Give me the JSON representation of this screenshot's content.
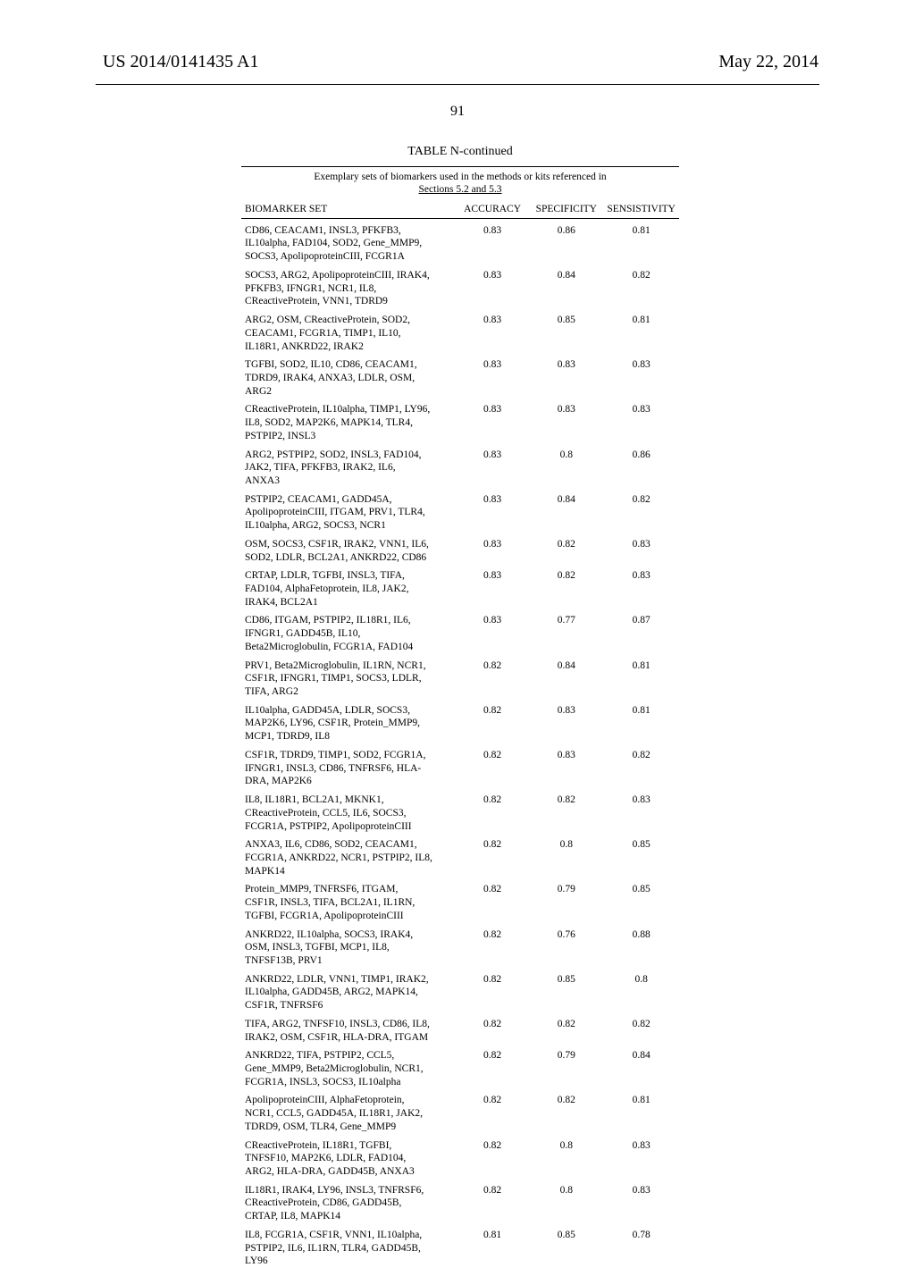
{
  "header": {
    "publication_number": "US 2014/0141435 A1",
    "publication_date": "May 22, 2014",
    "page_number": "91"
  },
  "table": {
    "title": "TABLE N-continued",
    "caption_line1": "Exemplary sets of biomarkers used in the methods or kits referenced in",
    "caption_line2": "Sections 5.2 and 5.3",
    "columns": [
      "BIOMARKER SET",
      "ACCURACY",
      "SPECIFICITY",
      "SENSISTIVITY"
    ],
    "rows": [
      {
        "set": [
          "CD86, CEACAM1, INSL3, PFKFB3,",
          "IL10alpha, FAD104, SOD2, Gene_MMP9,",
          "SOCS3, ApolipoproteinCIII, FCGR1A"
        ],
        "acc": "0.83",
        "spec": "0.86",
        "sens": "0.81"
      },
      {
        "set": [
          "SOCS3, ARG2, ApolipoproteinCIII, IRAK4,",
          "PFKFB3, IFNGR1, NCR1, IL8,",
          "CReactiveProtein, VNN1, TDRD9"
        ],
        "acc": "0.83",
        "spec": "0.84",
        "sens": "0.82"
      },
      {
        "set": [
          "ARG2, OSM, CReactiveProtein, SOD2,",
          "CEACAM1, FCGR1A, TIMP1, IL10,",
          "IL18R1, ANKRD22, IRAK2"
        ],
        "acc": "0.83",
        "spec": "0.85",
        "sens": "0.81"
      },
      {
        "set": [
          "TGFBI, SOD2, IL10, CD86, CEACAM1,",
          "TDRD9, IRAK4, ANXA3, LDLR, OSM,",
          "ARG2"
        ],
        "acc": "0.83",
        "spec": "0.83",
        "sens": "0.83"
      },
      {
        "set": [
          "CReactiveProtein, IL10alpha, TIMP1, LY96,",
          "IL8, SOD2, MAP2K6, MAPK14, TLR4,",
          "PSTPIP2, INSL3"
        ],
        "acc": "0.83",
        "spec": "0.83",
        "sens": "0.83"
      },
      {
        "set": [
          "ARG2, PSTPIP2, SOD2, INSL3, FAD104,",
          "JAK2, TIFA, PFKFB3, IRAK2, IL6,",
          "ANXA3"
        ],
        "acc": "0.83",
        "spec": "0.8",
        "sens": "0.86"
      },
      {
        "set": [
          "PSTPIP2, CEACAM1, GADD45A,",
          "ApolipoproteinCIII, ITGAM, PRV1, TLR4,",
          "IL10alpha, ARG2, SOCS3, NCR1"
        ],
        "acc": "0.83",
        "spec": "0.84",
        "sens": "0.82"
      },
      {
        "set": [
          "OSM, SOCS3, CSF1R, IRAK2, VNN1, IL6,",
          "SOD2, LDLR, BCL2A1, ANKRD22, CD86"
        ],
        "acc": "0.83",
        "spec": "0.82",
        "sens": "0.83"
      },
      {
        "set": [
          "CRTAP, LDLR, TGFBI, INSL3, TIFA,",
          "FAD104, AlphaFetoprotein, IL8, JAK2,",
          "IRAK4, BCL2A1"
        ],
        "acc": "0.83",
        "spec": "0.82",
        "sens": "0.83"
      },
      {
        "set": [
          "CD86, ITGAM, PSTPIP2, IL18R1, IL6,",
          "IFNGR1, GADD45B, IL10,",
          "Beta2Microglobulin, FCGR1A, FAD104"
        ],
        "acc": "0.83",
        "spec": "0.77",
        "sens": "0.87"
      },
      {
        "set": [
          "PRV1, Beta2Microglobulin, IL1RN, NCR1,",
          "CSF1R, IFNGR1, TIMP1, SOCS3, LDLR,",
          "TIFA, ARG2"
        ],
        "acc": "0.82",
        "spec": "0.84",
        "sens": "0.81"
      },
      {
        "set": [
          "IL10alpha, GADD45A, LDLR, SOCS3,",
          "MAP2K6, LY96, CSF1R, Protein_MMP9,",
          "MCP1, TDRD9, IL8"
        ],
        "acc": "0.82",
        "spec": "0.83",
        "sens": "0.81"
      },
      {
        "set": [
          "CSF1R, TDRD9, TIMP1, SOD2, FCGR1A,",
          "IFNGR1, INSL3, CD86, TNFRSF6, HLA-",
          "DRA, MAP2K6"
        ],
        "acc": "0.82",
        "spec": "0.83",
        "sens": "0.82"
      },
      {
        "set": [
          "IL8, IL18R1, BCL2A1, MKNK1,",
          "CReactiveProtein, CCL5, IL6, SOCS3,",
          "FCGR1A, PSTPIP2, ApolipoproteinCIII"
        ],
        "acc": "0.82",
        "spec": "0.82",
        "sens": "0.83"
      },
      {
        "set": [
          "ANXA3, IL6, CD86, SOD2, CEACAM1,",
          "FCGR1A, ANKRD22, NCR1, PSTPIP2, IL8,",
          "MAPK14"
        ],
        "acc": "0.82",
        "spec": "0.8",
        "sens": "0.85"
      },
      {
        "set": [
          "Protein_MMP9, TNFRSF6, ITGAM,",
          "CSF1R, INSL3, TIFA, BCL2A1, IL1RN,",
          "TGFBI, FCGR1A, ApolipoproteinCIII"
        ],
        "acc": "0.82",
        "spec": "0.79",
        "sens": "0.85"
      },
      {
        "set": [
          "ANKRD22, IL10alpha, SOCS3, IRAK4,",
          "OSM, INSL3, TGFBI, MCP1, IL8,",
          "TNFSF13B, PRV1"
        ],
        "acc": "0.82",
        "spec": "0.76",
        "sens": "0.88"
      },
      {
        "set": [
          "ANKRD22, LDLR, VNN1, TIMP1, IRAK2,",
          "IL10alpha, GADD45B, ARG2, MAPK14,",
          "CSF1R, TNFRSF6"
        ],
        "acc": "0.82",
        "spec": "0.85",
        "sens": "0.8"
      },
      {
        "set": [
          "TIFA, ARG2, TNFSF10, INSL3, CD86, IL8,",
          "IRAK2, OSM, CSF1R, HLA-DRA, ITGAM"
        ],
        "acc": "0.82",
        "spec": "0.82",
        "sens": "0.82"
      },
      {
        "set": [
          "ANKRD22, TIFA, PSTPIP2, CCL5,",
          "Gene_MMP9, Beta2Microglobulin, NCR1,",
          "FCGR1A, INSL3, SOCS3, IL10alpha"
        ],
        "acc": "0.82",
        "spec": "0.79",
        "sens": "0.84"
      },
      {
        "set": [
          "ApolipoproteinCIII, AlphaFetoprotein,",
          "NCR1, CCL5, GADD45A, IL18R1, JAK2,",
          "TDRD9, OSM, TLR4, Gene_MMP9"
        ],
        "acc": "0.82",
        "spec": "0.82",
        "sens": "0.81"
      },
      {
        "set": [
          "CReactiveProtein, IL18R1, TGFBI,",
          "TNFSF10, MAP2K6, LDLR, FAD104,",
          "ARG2, HLA-DRA, GADD45B, ANXA3"
        ],
        "acc": "0.82",
        "spec": "0.8",
        "sens": "0.83"
      },
      {
        "set": [
          "IL18R1, IRAK4, LY96, INSL3, TNFRSF6,",
          "CReactiveProtein, CD86, GADD45B,",
          "CRTAP, IL8, MAPK14"
        ],
        "acc": "0.82",
        "spec": "0.8",
        "sens": "0.83"
      },
      {
        "set": [
          "IL8, FCGR1A, CSF1R, VNN1, IL10alpha,",
          "PSTPIP2, IL6, IL1RN, TLR4, GADD45B,",
          "LY96"
        ],
        "acc": "0.81",
        "spec": "0.85",
        "sens": "0.78"
      }
    ]
  }
}
